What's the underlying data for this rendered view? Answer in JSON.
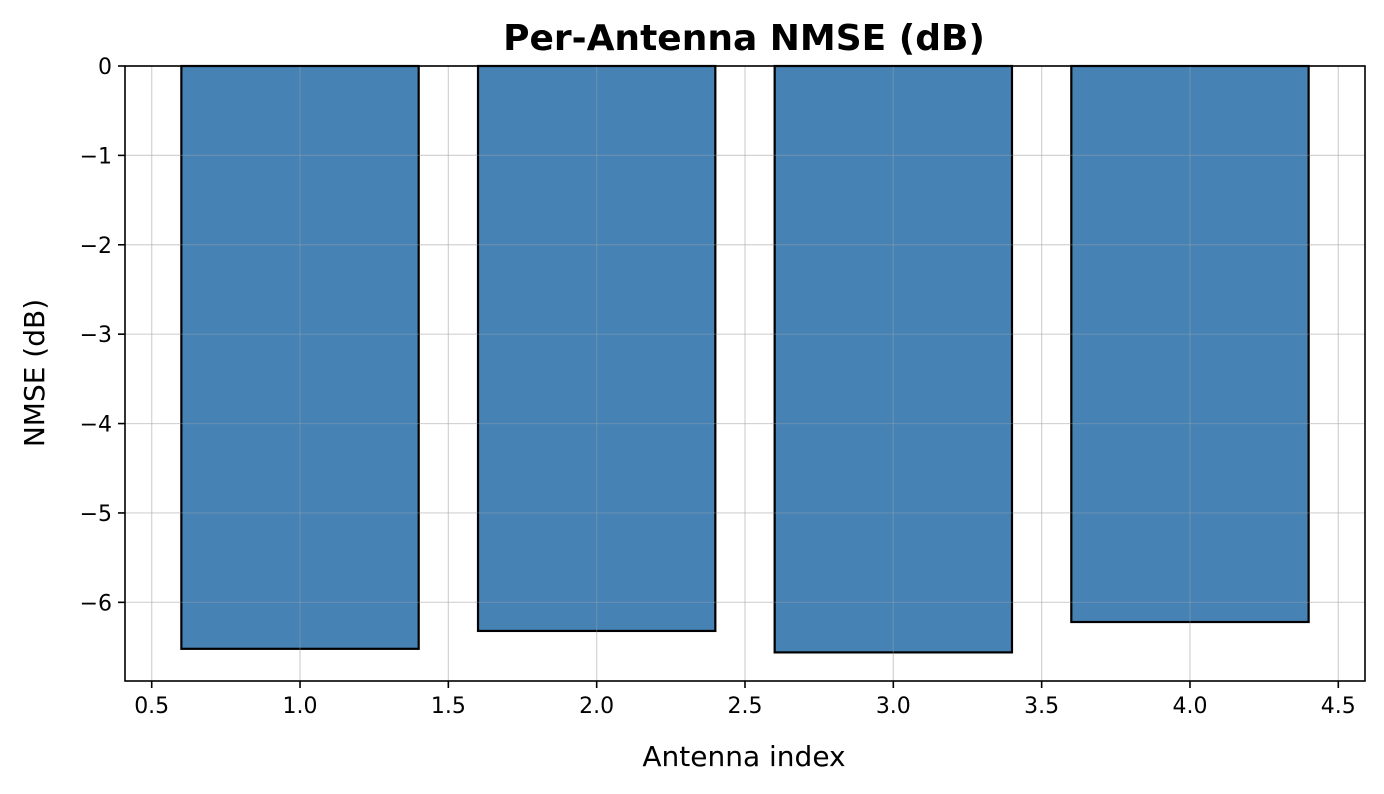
{
  "chart_data": {
    "type": "bar",
    "title": "Per-Antenna NMSE (dB)",
    "xlabel": "Antenna index",
    "ylabel": "NMSE (dB)",
    "x": [
      1,
      2,
      3,
      4
    ],
    "values": [
      -6.52,
      -6.32,
      -6.56,
      -6.22
    ],
    "bar_width": 0.8,
    "xlim": [
      0.41,
      4.59
    ],
    "ylim": [
      -6.88,
      0
    ],
    "xticks": [
      0.5,
      1.0,
      1.5,
      2.0,
      2.5,
      3.0,
      3.5,
      4.0,
      4.5
    ],
    "xtick_labels": [
      "0.5",
      "1.0",
      "1.5",
      "2.0",
      "2.5",
      "3.0",
      "3.5",
      "4.0",
      "4.5"
    ],
    "yticks": [
      0,
      -1,
      -2,
      -3,
      -4,
      -5,
      -6
    ],
    "ytick_labels": [
      "0",
      "−1",
      "−2",
      "−3",
      "−4",
      "−5",
      "−6"
    ],
    "grid": true,
    "bar_color": "#4682b4",
    "edge_color": "#000000"
  }
}
